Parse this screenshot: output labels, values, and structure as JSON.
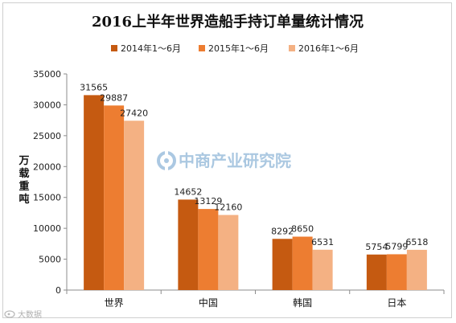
{
  "chart_data": {
    "type": "bar",
    "title": "2016上半年世界造船手持订单量统计情况",
    "ylabel": "万载重吨",
    "categories": [
      "世界",
      "中国",
      "韩国",
      "日本"
    ],
    "series": [
      {
        "name": "2014年1～6月",
        "values": [
          31565,
          14652,
          8292,
          5754
        ],
        "color": "#c55a11"
      },
      {
        "name": "2015年1～6月",
        "values": [
          29887,
          13129,
          8650,
          5799
        ],
        "color": "#ed7d31"
      },
      {
        "name": "2016年1～6月",
        "values": [
          27420,
          12160,
          6531,
          6518
        ],
        "color": "#f4b183"
      }
    ],
    "ylim": [
      0,
      35000
    ],
    "yticks": [
      0,
      5000,
      10000,
      15000,
      20000,
      25000,
      30000,
      35000
    ],
    "legend": "top",
    "grid": false
  },
  "watermark": {
    "text": "中商产业研究院",
    "icon": "china-commerce-logo-icon",
    "color": "#8fb6d8"
  },
  "source_mark": {
    "text": "大数据",
    "icon": "weibo-logo-icon"
  }
}
